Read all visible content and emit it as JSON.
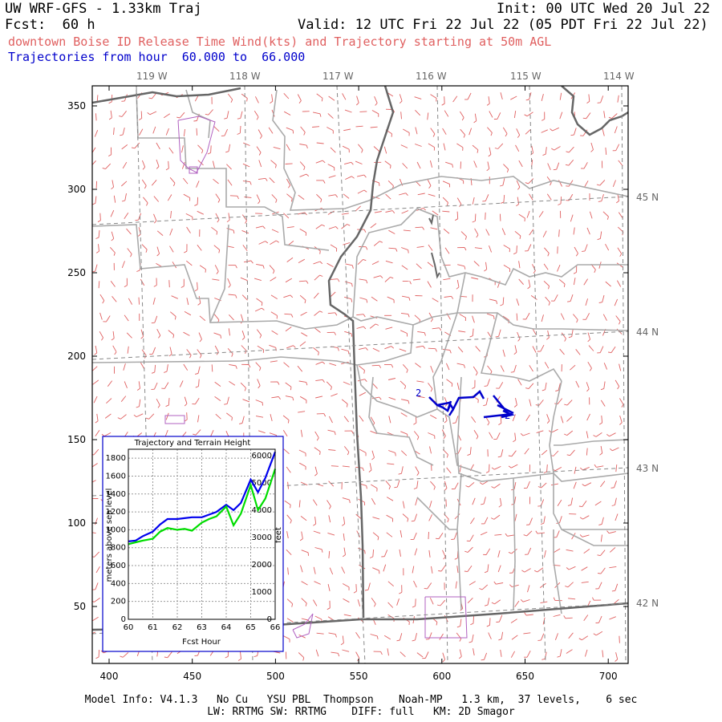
{
  "header": {
    "title_left": "UW WRF-GFS - 1.33km Traj",
    "init": "Init: 00 UTC Wed 20 Jul 22",
    "fcst": "Fcst:  60 h",
    "valid": "Valid: 12 UTC Fri 22 Jul 22 (05 PDT Fri 22 Jul 22)",
    "subtitle": "downtown Boise ID Release Time Wind(kts) and Trajectory starting at 50m AGL",
    "traj_range": "Trajectories from hour  60.000 to  66.000"
  },
  "map": {
    "x_ticks": [
      "400",
      "450",
      "500",
      "550",
      "600",
      "650",
      "700"
    ],
    "y_ticks": [
      "50",
      "100",
      "150",
      "200",
      "250",
      "300",
      "350"
    ],
    "lon_labels": [
      "119 W",
      "118 W",
      "117 W",
      "116 W",
      "115 W",
      "114 W"
    ],
    "lat_labels": [
      "45 N",
      "44 N",
      "43 N",
      "42 N"
    ],
    "trajectory_markers": [
      "2",
      "2"
    ],
    "colors": {
      "wind_barbs": "#e06060",
      "state_lines": "#555555",
      "county_lines": "#aaaaaa",
      "gridlines": "#888888",
      "trajectory": "#0000cc",
      "urban": "#b060c0"
    }
  },
  "inset": {
    "title": "Trajectory and Terrain Height",
    "xlabel": "Fcst Hour",
    "ylabel_left": "meters above sea level",
    "ylabel_right": "feet",
    "left_ticks": [
      "0",
      "200",
      "400",
      "600",
      "800",
      "1000",
      "1200",
      "1400",
      "1600",
      "1800"
    ],
    "right_ticks": [
      "0",
      "1000",
      "2000",
      "3000",
      "4000",
      "5000",
      "6000"
    ],
    "x_ticks": [
      "60",
      "61",
      "62",
      "63",
      "64",
      "65",
      "66"
    ]
  },
  "chart_data": {
    "type": "line",
    "title": "Trajectory and Terrain Height",
    "xlabel": "Fcst Hour",
    "ylabel": "meters above sea level",
    "xlim": [
      60,
      66
    ],
    "ylim": [
      0,
      1900
    ],
    "x": [
      60,
      60.3,
      60.6,
      61,
      61.3,
      61.6,
      62,
      62.3,
      62.6,
      63,
      63.3,
      63.6,
      64,
      64.3,
      64.6,
      65,
      65.3,
      65.6,
      66
    ],
    "series": [
      {
        "color": "#0000ee",
        "values": [
          870,
          880,
          930,
          980,
          1060,
          1120,
          1120,
          1130,
          1140,
          1140,
          1170,
          1200,
          1280,
          1220,
          1300,
          1560,
          1420,
          1580,
          1870
        ]
      },
      {
        "color": "#00dd00",
        "values": [
          840,
          860,
          880,
          900,
          980,
          1020,
          1000,
          1010,
          990,
          1080,
          1120,
          1150,
          1260,
          1050,
          1180,
          1500,
          1220,
          1350,
          1680
        ]
      }
    ]
  },
  "footer": {
    "line1": "Model Info: V4.1.3   No Cu   YSU PBL  Thompson    Noah-MP   1.3 km,  37 levels,    6 sec",
    "line2": "LW: RRTMG SW: RRTMG    DIFF: full   KM: 2D Smagor"
  }
}
